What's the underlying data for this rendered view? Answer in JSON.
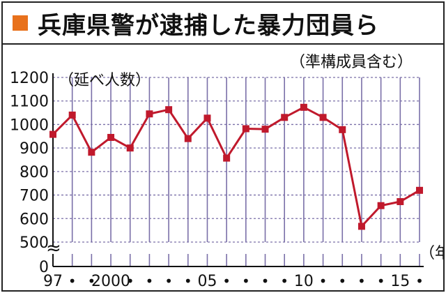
{
  "header": {
    "title": "兵庫県警が逮捕した暴力団員ら"
  },
  "colors": {
    "accent_square": "#e8711c",
    "series_line": "#c0192c",
    "grid": "#7a6fa8"
  },
  "chart_data": {
    "type": "line",
    "title": "兵庫県警が逮捕した暴力団員ら",
    "subtitle": "（準構成員含む）",
    "ylabel": "（延べ人数）",
    "xlabel": "（年）",
    "ylim": [
      500,
      1200
    ],
    "yticks": [
      "0",
      "500",
      "600",
      "700",
      "800",
      "900",
      "1000",
      "1100",
      "1200"
    ],
    "axis_break": "≈",
    "grid": true,
    "x": [
      1997,
      1998,
      1999,
      2000,
      2001,
      2002,
      2003,
      2004,
      2005,
      2006,
      2007,
      2008,
      2009,
      2010,
      2011,
      2012,
      2013,
      2014,
      2015,
      2016
    ],
    "xtick_labels": [
      "97",
      "•",
      "•",
      "2000",
      "•",
      "•",
      "•",
      "•",
      "05",
      "•",
      "•",
      "•",
      "•",
      "10",
      "•",
      "•",
      "•",
      "•",
      "15",
      "•"
    ],
    "series": [
      {
        "values": [
          958,
          1040,
          882,
          945,
          900,
          1045,
          1063,
          940,
          1027,
          857,
          982,
          980,
          1030,
          1073,
          1030,
          978,
          567,
          655,
          672,
          720
        ]
      }
    ]
  }
}
